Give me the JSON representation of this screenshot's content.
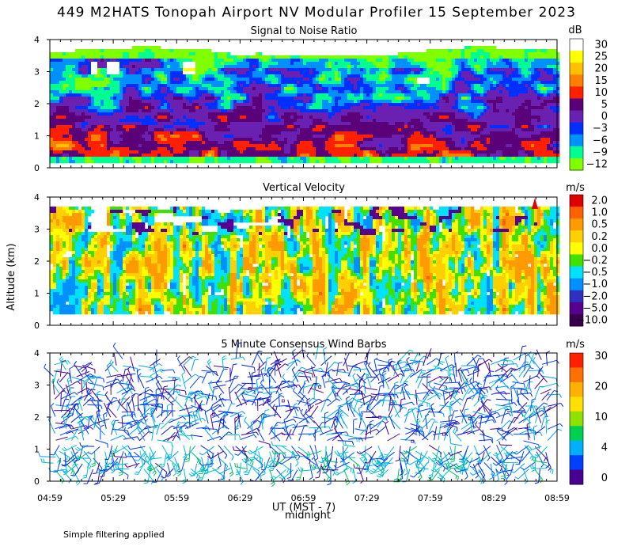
{
  "title": "449 M2HATS Tonopah Airport NV Modular Profiler 15 September 2023",
  "ylabel": "Altitude (km)",
  "xlabel": "UT (MST - 7)",
  "midnight_label": "midnight",
  "footer": "Simple filtering applied",
  "time_ticks": [
    "04:59",
    "05:29",
    "05:59",
    "06:29",
    "06:59",
    "07:29",
    "07:59",
    "08:29",
    "08:59"
  ],
  "chart_data": [
    {
      "type": "heatmap",
      "title": "Signal to Noise Ratio",
      "unit": "dB",
      "ylabel": "Altitude (km)",
      "ylim": [
        0,
        4
      ],
      "yticks": [
        "0",
        "1",
        "2",
        "3",
        "4"
      ],
      "colorbar": {
        "labels": [
          "30",
          "25",
          "20",
          "15",
          "10",
          "5",
          "0",
          "−3",
          "−6",
          "−9",
          "−12"
        ],
        "colors": [
          "#ffffff",
          "#ffff00",
          "#ffc000",
          "#ff8000",
          "#ff2000",
          "#5a0078",
          "#6a20b0",
          "#0030ff",
          "#0090ff",
          "#00ff90",
          "#80ff00"
        ]
      },
      "description_layers": [
        {
          "from_km": 0.2,
          "to_km": 0.35,
          "value_db": -9
        },
        {
          "from_km": 0.4,
          "to_km": 1.5,
          "value_db": 15
        },
        {
          "from_km": 0.9,
          "to_km": 2.3,
          "value_db": 3
        },
        {
          "from_km": 1.5,
          "to_km": 3.1,
          "value_db": -3
        },
        {
          "from_km": 3.1,
          "to_km": 3.5,
          "value_db": -9
        },
        {
          "from_km": 3.5,
          "to_km": 3.7,
          "value_db": -12
        }
      ]
    },
    {
      "type": "heatmap",
      "title": "Vertical Velocity",
      "unit": "m/s",
      "ylabel": "Altitude (km)",
      "ylim": [
        0,
        4
      ],
      "yticks": [
        "0",
        "1",
        "2",
        "3",
        "4"
      ],
      "colorbar": {
        "labels": [
          "2.0",
          "1.0",
          "0.5",
          "0.2",
          "0.0",
          "−0.2",
          "−0.5",
          "−1.0",
          "−2.0",
          "−5.0",
          "−10.0"
        ],
        "colors": [
          "#e00000",
          "#ff6000",
          "#ff9a00",
          "#ffd000",
          "#ffff00",
          "#40e000",
          "#00e0ff",
          "#0090ff",
          "#3030c0",
          "#5a0090",
          "#3a0050"
        ]
      },
      "data_range_km": [
        0.3,
        3.7
      ]
    },
    {
      "type": "scatter",
      "title": "5 Minute Consensus Wind Barbs",
      "unit": "m/s",
      "ylabel": "Altitude (km)",
      "ylim": [
        0,
        4
      ],
      "yticks": [
        "0",
        "1",
        "2",
        "3",
        "4"
      ],
      "colorbar": {
        "labels": [
          "30",
          "20",
          "10",
          "4",
          "0"
        ],
        "colors": [
          "#ff2000",
          "#ff7000",
          "#ffb000",
          "#ffe000",
          "#90e000",
          "#00d050",
          "#00b0ff",
          "#0040ff",
          "#4a0090"
        ]
      },
      "wind_speed_range_ms": [
        0,
        12
      ]
    }
  ]
}
